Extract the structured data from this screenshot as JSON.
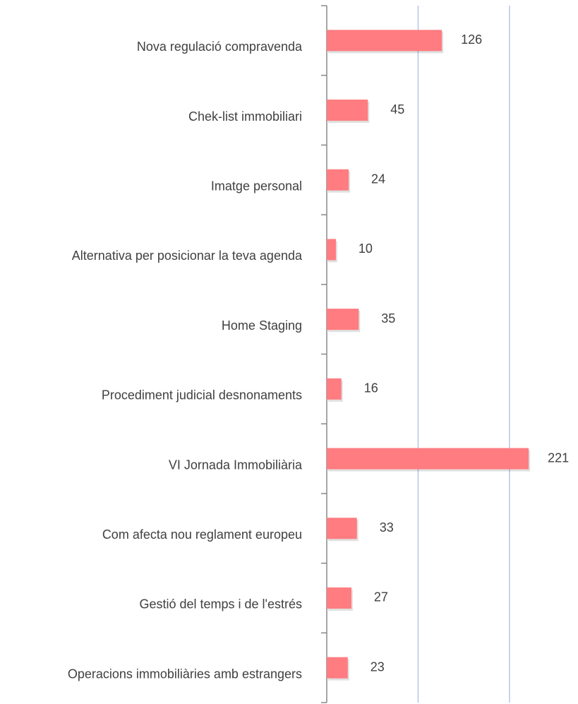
{
  "chart_data": {
    "type": "bar",
    "orientation": "horizontal",
    "categories": [
      "Nova regulació compravenda",
      "Chek-list immobiliari",
      "Imatge personal",
      "Alternativa per posicionar la teva agenda",
      "Home Staging",
      "Procediment judicial desnonaments",
      "VI Jornada Immobiliària",
      "Com afecta nou reglament europeu",
      "Gestió del temps i de l'estrés",
      "Operacions immobiliàries amb estrangers"
    ],
    "values": [
      126,
      45,
      24,
      10,
      35,
      16,
      221,
      33,
      27,
      23
    ],
    "color": "#ff7c80",
    "xlim": [
      0,
      275
    ],
    "xticks": [
      100,
      200
    ],
    "grid": true
  }
}
